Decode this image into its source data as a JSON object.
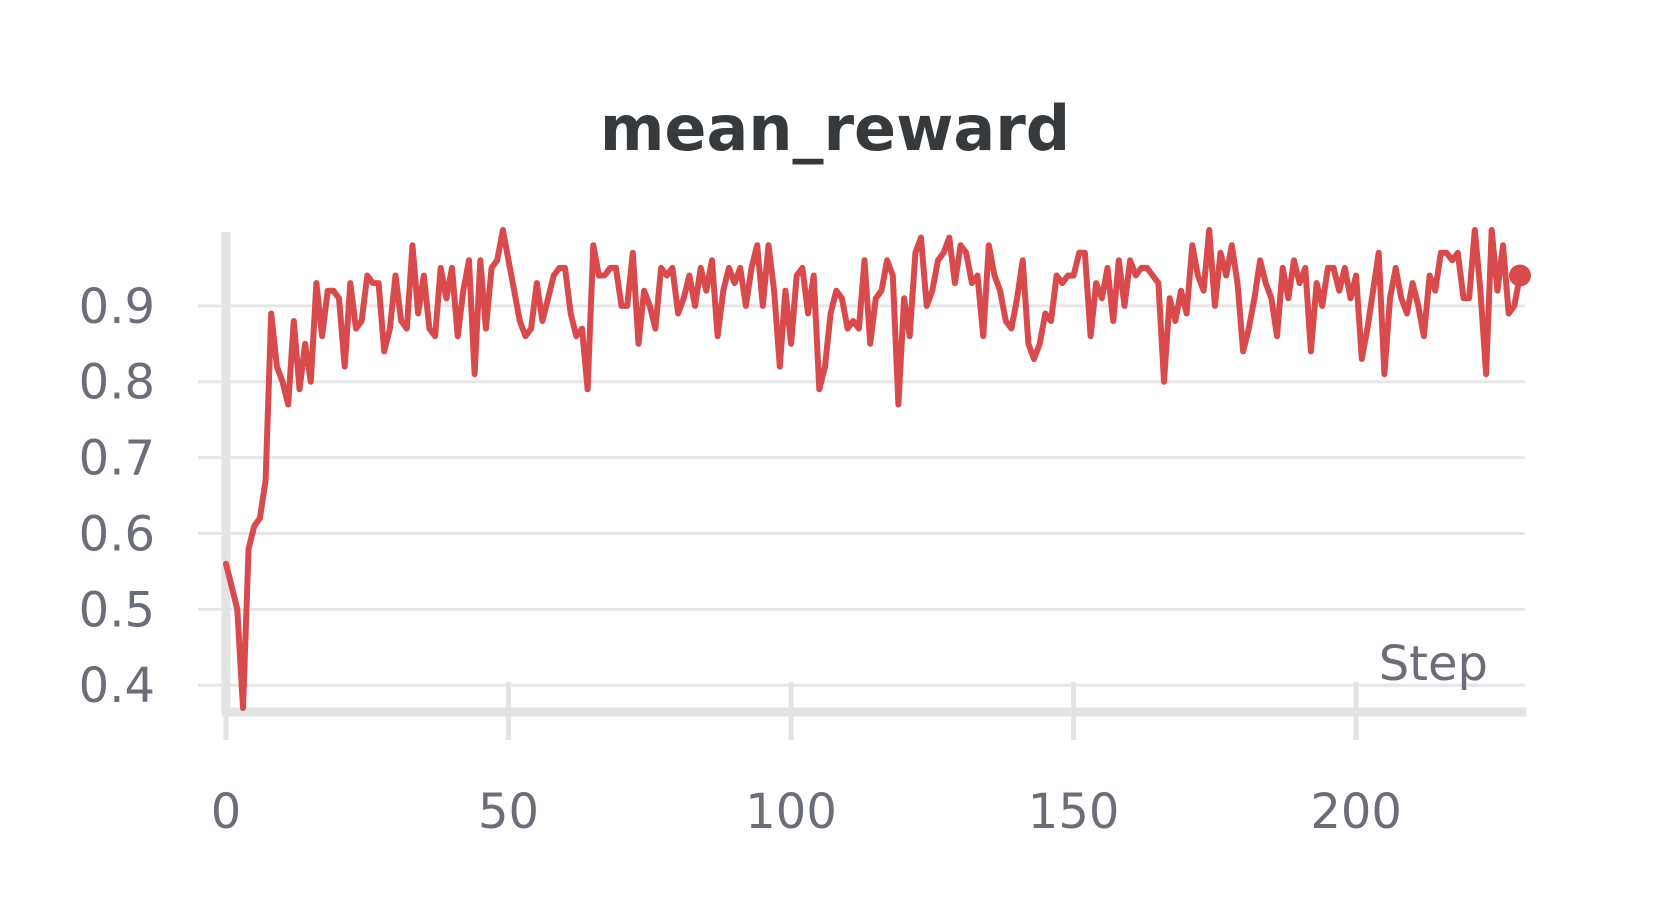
{
  "chart_data": {
    "type": "line",
    "title": "mean_reward",
    "xlabel": "Step",
    "ylabel": "",
    "xlim": [
      0,
      229
    ],
    "ylim": [
      0.37,
      1.0
    ],
    "x_ticks": [
      0,
      50,
      100,
      150,
      200
    ],
    "x_tick_labels": [
      "0",
      "50",
      "100",
      "150",
      "200"
    ],
    "y_ticks": [
      0.4,
      0.5,
      0.6,
      0.7,
      0.8,
      0.9
    ],
    "y_tick_labels": [
      "0.4",
      "0.5",
      "0.6",
      "0.7",
      "0.8",
      "0.9"
    ],
    "grid": true,
    "legend": "none",
    "colors": {
      "line": "#d94a4c",
      "grid": "#e6e6e6",
      "axis": "#e3e3e3",
      "title": "#363a3d",
      "ticks": "#6b6e78"
    },
    "series": [
      {
        "x": [
          0,
          1,
          2,
          3,
          4,
          5,
          6,
          7,
          8,
          9,
          10,
          11,
          12,
          13,
          14,
          15,
          16,
          17,
          18,
          19,
          20,
          21,
          22,
          23,
          24,
          25,
          26,
          27,
          28,
          29,
          30,
          31,
          32,
          33,
          34,
          35,
          36,
          37,
          38,
          39,
          40,
          41,
          42,
          43,
          44,
          45,
          46,
          47,
          48,
          49,
          50,
          51,
          52,
          53,
          54,
          55,
          56,
          57,
          58,
          59,
          60,
          61,
          62,
          63,
          64,
          65,
          66,
          67,
          68,
          69,
          70,
          71,
          72,
          73,
          74,
          75,
          76,
          77,
          78,
          79,
          80,
          81,
          82,
          83,
          84,
          85,
          86,
          87,
          88,
          89,
          90,
          91,
          92,
          93,
          94,
          95,
          96,
          97,
          98,
          99,
          100,
          101,
          102,
          103,
          104,
          105,
          106,
          107,
          108,
          109,
          110,
          111,
          112,
          113,
          114,
          115,
          116,
          117,
          118,
          119,
          120,
          121,
          122,
          123,
          124,
          125,
          126,
          127,
          128,
          129,
          130,
          131,
          132,
          133,
          134,
          135,
          136,
          137,
          138,
          139,
          140,
          141,
          142,
          143,
          144,
          145,
          146,
          147,
          148,
          149,
          150,
          151,
          152,
          153,
          154,
          155,
          156,
          157,
          158,
          159,
          160,
          161,
          162,
          163,
          164,
          165,
          166,
          167,
          168,
          169,
          170,
          171,
          172,
          173,
          174,
          175,
          176,
          177,
          178,
          179,
          180,
          181,
          182,
          183,
          184,
          185,
          186,
          187,
          188,
          189,
          190,
          191,
          192,
          193,
          194,
          195,
          196,
          197,
          198,
          199,
          200,
          201,
          202,
          203,
          204,
          205,
          206,
          207,
          208,
          209,
          210,
          211,
          212,
          213,
          214,
          215,
          216,
          217,
          218,
          219,
          220,
          221,
          222,
          223,
          224,
          225,
          226,
          227,
          228,
          229
        ],
        "values": [
          0.56,
          0.53,
          0.5,
          0.37,
          0.58,
          0.61,
          0.62,
          0.67,
          0.89,
          0.82,
          0.8,
          0.77,
          0.88,
          0.79,
          0.85,
          0.8,
          0.93,
          0.86,
          0.92,
          0.92,
          0.91,
          0.82,
          0.93,
          0.87,
          0.88,
          0.94,
          0.93,
          0.93,
          0.84,
          0.87,
          0.94,
          0.88,
          0.87,
          0.98,
          0.89,
          0.94,
          0.87,
          0.86,
          0.95,
          0.91,
          0.95,
          0.86,
          0.92,
          0.96,
          0.81,
          0.96,
          0.87,
          0.95,
          0.96,
          1.0,
          0.96,
          0.92,
          0.88,
          0.86,
          0.87,
          0.93,
          0.88,
          0.91,
          0.94,
          0.95,
          0.95,
          0.89,
          0.86,
          0.87,
          0.79,
          0.98,
          0.94,
          0.94,
          0.95,
          0.95,
          0.9,
          0.9,
          0.97,
          0.85,
          0.92,
          0.9,
          0.87,
          0.95,
          0.94,
          0.95,
          0.89,
          0.91,
          0.94,
          0.9,
          0.95,
          0.92,
          0.96,
          0.86,
          0.92,
          0.95,
          0.93,
          0.95,
          0.9,
          0.95,
          0.98,
          0.9,
          0.98,
          0.92,
          0.82,
          0.92,
          0.85,
          0.94,
          0.95,
          0.89,
          0.94,
          0.79,
          0.82,
          0.89,
          0.92,
          0.91,
          0.87,
          0.88,
          0.87,
          0.96,
          0.85,
          0.91,
          0.92,
          0.96,
          0.94,
          0.77,
          0.91,
          0.86,
          0.97,
          0.99,
          0.9,
          0.92,
          0.96,
          0.97,
          0.99,
          0.93,
          0.98,
          0.97,
          0.93,
          0.94,
          0.86,
          0.98,
          0.94,
          0.92,
          0.88,
          0.87,
          0.91,
          0.96,
          0.85,
          0.83,
          0.85,
          0.89,
          0.88,
          0.94,
          0.93,
          0.94,
          0.94,
          0.97,
          0.97,
          0.86,
          0.93,
          0.91,
          0.95,
          0.88,
          0.96,
          0.9,
          0.96,
          0.94,
          0.95,
          0.95,
          0.94,
          0.93,
          0.8,
          0.91,
          0.88,
          0.92,
          0.89,
          0.98,
          0.94,
          0.92,
          1.0,
          0.9,
          0.97,
          0.94,
          0.98,
          0.93,
          0.84,
          0.87,
          0.91,
          0.96,
          0.93,
          0.91,
          0.86,
          0.95,
          0.91,
          0.96,
          0.93,
          0.95,
          0.84,
          0.93,
          0.9,
          0.95,
          0.95,
          0.92,
          0.95,
          0.91,
          0.94,
          0.83,
          0.87,
          0.92,
          0.97,
          0.81,
          0.91,
          0.95,
          0.91,
          0.89,
          0.93,
          0.9,
          0.86,
          0.94,
          0.92,
          0.97,
          0.97,
          0.96,
          0.97,
          0.91,
          0.91,
          1.0,
          0.92,
          0.81,
          1.0,
          0.92,
          0.98,
          0.89,
          0.9,
          0.94
        ]
      }
    ]
  }
}
